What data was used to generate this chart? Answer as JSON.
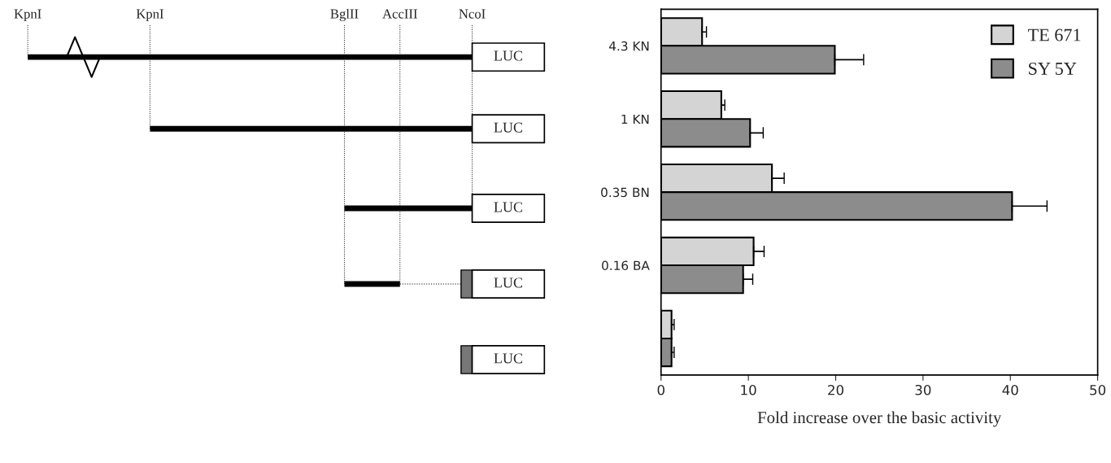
{
  "chart_data": [
    {
      "type": "other",
      "annotations": [
        "KpnI",
        "KpnI",
        "BglII",
        "AccIII",
        "NcoI",
        "LUC",
        "LUC",
        "LUC",
        "LUC",
        "LUC"
      ]
    },
    {
      "type": "bar",
      "orientation": "horizontal",
      "categories": [
        "4.3 KN",
        "1 KN",
        "0.35 BN",
        "0.16 BA",
        null
      ],
      "series": [
        {
          "name": "TE 671",
          "color": "#d4d4d4",
          "values": [
            4.7,
            6.9,
            12.7,
            10.6,
            1.2
          ],
          "errors": [
            0.5,
            0.4,
            1.4,
            1.2,
            0.3
          ]
        },
        {
          "name": "SY 5Y",
          "color": "#8c8c8c",
          "values": [
            19.9,
            10.2,
            40.2,
            9.4,
            1.2
          ],
          "errors": [
            3.3,
            1.5,
            4.0,
            1.1,
            0.3
          ]
        }
      ],
      "xlim": [
        0,
        50
      ],
      "xticks": [
        0,
        10,
        20,
        30,
        40,
        50
      ],
      "xlabel": "Fold increase over the basic activity",
      "legend": "top right",
      "grid": false
    }
  ]
}
